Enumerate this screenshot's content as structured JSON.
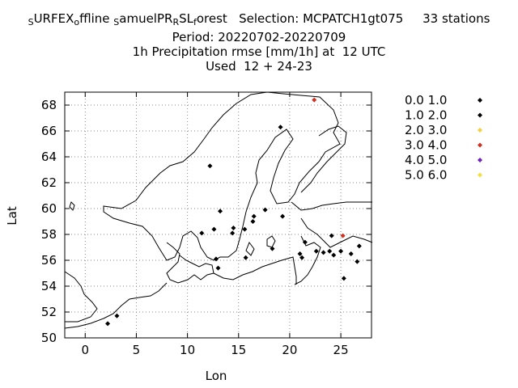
{
  "title": {
    "line1_s1": "S",
    "line1_t1": "URFEX",
    "line1_s2": "o",
    "line1_t2": "ffline",
    "line1_s3": "S",
    "line1_t3": "amuelPR",
    "line1_s4": "R",
    "line1_t4": "SL",
    "line1_s5": "f",
    "line1_t5": "orest   Selection: MCPATCH1gt075     33 stations",
    "line2": "Period: 20220702-20220709",
    "line3": "1h Precipitation rmse [mm/1h] at  12 UTC",
    "line4": "Used  12 + 24-23"
  },
  "chart_data": {
    "type": "scatter",
    "xlabel": "Lon",
    "ylabel": "Lat",
    "xlim": [
      -2,
      28
    ],
    "ylim": [
      50,
      69
    ],
    "xticks": [
      0,
      5,
      10,
      15,
      20,
      25
    ],
    "yticks": [
      50,
      52,
      54,
      56,
      58,
      60,
      62,
      64,
      66,
      68
    ],
    "grid": true,
    "legend_position": "right",
    "legend": [
      {
        "label": "0.0 1.0",
        "color": "#000000"
      },
      {
        "label": "1.0 2.0",
        "color": "#000000"
      },
      {
        "label": "2.0 3.0",
        "color": "#f0d040"
      },
      {
        "label": "3.0 4.0",
        "color": "#d03020"
      },
      {
        "label": "4.0 5.0",
        "color": "#7020c0"
      },
      {
        "label": "5.0 6.0",
        "color": "#f0e040"
      }
    ],
    "points": [
      {
        "lon": 22.4,
        "lat": 68.4,
        "cls": 3
      },
      {
        "lon": 19.1,
        "lat": 66.3,
        "cls": 0
      },
      {
        "lon": 12.2,
        "lat": 63.3,
        "cls": 0
      },
      {
        "lon": 13.2,
        "lat": 59.8,
        "cls": 0
      },
      {
        "lon": 17.6,
        "lat": 59.9,
        "cls": 0
      },
      {
        "lon": 16.5,
        "lat": 59.4,
        "cls": 0
      },
      {
        "lon": 19.3,
        "lat": 59.4,
        "cls": 0
      },
      {
        "lon": 16.4,
        "lat": 59.0,
        "cls": 0
      },
      {
        "lon": 14.5,
        "lat": 58.5,
        "cls": 0
      },
      {
        "lon": 15.6,
        "lat": 58.4,
        "cls": 0
      },
      {
        "lon": 12.6,
        "lat": 58.4,
        "cls": 0
      },
      {
        "lon": 11.4,
        "lat": 58.1,
        "cls": 0
      },
      {
        "lon": 14.4,
        "lat": 58.1,
        "cls": 0
      },
      {
        "lon": 25.2,
        "lat": 57.9,
        "cls": 3
      },
      {
        "lon": 24.1,
        "lat": 57.9,
        "cls": 0
      },
      {
        "lon": 21.5,
        "lat": 57.4,
        "cls": 0
      },
      {
        "lon": 26.8,
        "lat": 57.1,
        "cls": 0
      },
      {
        "lon": 18.3,
        "lat": 56.9,
        "cls": 0
      },
      {
        "lon": 22.6,
        "lat": 56.7,
        "cls": 0
      },
      {
        "lon": 23.3,
        "lat": 56.6,
        "cls": 0
      },
      {
        "lon": 23.9,
        "lat": 56.7,
        "cls": 0
      },
      {
        "lon": 25.0,
        "lat": 56.7,
        "cls": 0
      },
      {
        "lon": 21.0,
        "lat": 56.5,
        "cls": 0
      },
      {
        "lon": 26.0,
        "lat": 56.5,
        "cls": 0
      },
      {
        "lon": 24.3,
        "lat": 56.4,
        "cls": 0
      },
      {
        "lon": 21.2,
        "lat": 56.2,
        "cls": 0
      },
      {
        "lon": 15.7,
        "lat": 56.2,
        "cls": 0
      },
      {
        "lon": 12.8,
        "lat": 56.1,
        "cls": 0
      },
      {
        "lon": 26.6,
        "lat": 55.9,
        "cls": 0
      },
      {
        "lon": 13.0,
        "lat": 55.4,
        "cls": 0
      },
      {
        "lon": 25.3,
        "lat": 54.6,
        "cls": 0
      },
      {
        "lon": 3.1,
        "lat": 51.7,
        "cls": 0
      },
      {
        "lon": 2.2,
        "lat": 51.1,
        "cls": 0
      }
    ]
  }
}
